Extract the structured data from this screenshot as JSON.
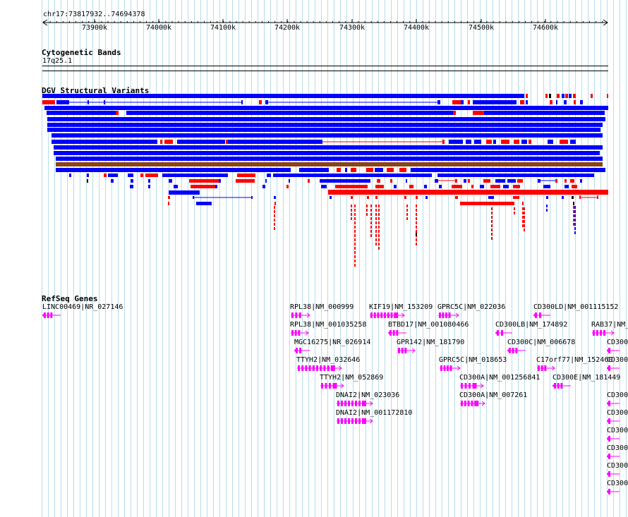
{
  "colors": {
    "background": "#ffffff",
    "grid": "#b8dce8",
    "gain": "#0000ff",
    "loss": "#ff0000",
    "inversion": "#8b4513",
    "gene": "#ff00ff",
    "text": "#000000"
  },
  "ruler": {
    "region": "chr17:73817932..74694378",
    "ticks": [
      "73900k",
      "74000k",
      "74100k",
      "74200k",
      "74300k",
      "74400k",
      "74500k",
      "74600k"
    ]
  },
  "tracks": {
    "cytoband": {
      "title": "Cytogenetic Bands",
      "band": "17q25.1"
    },
    "dgv": {
      "title": "DGV Structural Variants"
    },
    "refseq": {
      "title": "RefSeq Genes"
    }
  },
  "genes": [
    {
      "label": "LINC00469|NR_027146",
      "strand": "-"
    },
    {
      "label": "RPL38|NM_000999",
      "strand": "+"
    },
    {
      "label": "KIF19|NM_153209",
      "strand": "+"
    },
    {
      "label": "GPRC5C|NM_022036",
      "strand": "+"
    },
    {
      "label": "CD300LD|NM_001115152",
      "strand": "-"
    },
    {
      "label": "RPL38|NM_001035258",
      "strand": "+"
    },
    {
      "label": "BTBD17|NM_001080466",
      "strand": "-"
    },
    {
      "label": "CD300LB|NM_174892",
      "strand": "-"
    },
    {
      "label": "RAB37|NM_",
      "strand": "+"
    },
    {
      "label": "MGC16275|NR_026914",
      "strand": "-"
    },
    {
      "label": "GPR142|NM_181790",
      "strand": "+"
    },
    {
      "label": "CD300C|NM_006678",
      "strand": "-"
    },
    {
      "label": "CD300",
      "strand": "-"
    },
    {
      "label": "TTYH2|NM_032646",
      "strand": "+"
    },
    {
      "label": "GPRC5C|NM_018653",
      "strand": "+"
    },
    {
      "label": "C17orf77|NM_152460",
      "strand": "+"
    },
    {
      "label": "CD300",
      "strand": "-"
    },
    {
      "label": "TTYH2|NM_052869",
      "strand": "+"
    },
    {
      "label": "CD300A|NM_001256841",
      "strand": "+"
    },
    {
      "label": "CD300E|NM_181449",
      "strand": "-"
    },
    {
      "label": "DNAI2|NM_023036",
      "strand": "+"
    },
    {
      "label": "CD300A|NM_007261",
      "strand": "+"
    },
    {
      "label": "CD300",
      "strand": "-"
    },
    {
      "label": "DNAI2|NM_001172810",
      "strand": "+"
    },
    {
      "label": "CD300",
      "strand": "-"
    },
    {
      "label": "CD300",
      "strand": "-"
    },
    {
      "label": "CD300",
      "strand": "-"
    },
    {
      "label": "CD300",
      "strand": "-"
    },
    {
      "label": "CD300",
      "strand": "-"
    }
  ]
}
